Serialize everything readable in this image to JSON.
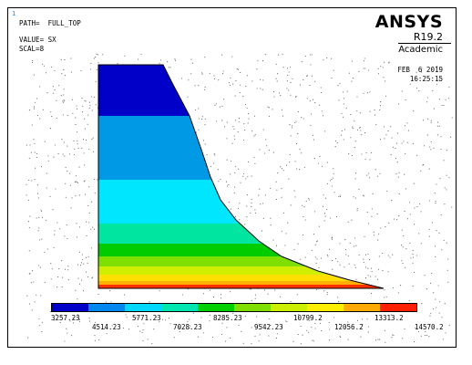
{
  "window": {
    "number": "1"
  },
  "info": {
    "path_line": "PATH=  FULL_TOP",
    "value_line": "VALUE= SX",
    "scale_line": "SCAL=8"
  },
  "logo": {
    "brand": "ANSYS",
    "release": "R19.2",
    "edition": "Academic"
  },
  "stamp": {
    "date": "FEB  6 2019",
    "time": "16:25:15"
  },
  "colors": {
    "bands": [
      "#0000c8",
      "#0088ee",
      "#00d8ff",
      "#00e6b0",
      "#00d000",
      "#7fe000",
      "#ccee00",
      "#ffee00",
      "#ffaa00",
      "#ff2000"
    ],
    "contour_fill": [
      "#0000c8",
      "#0099e6",
      "#00e6ff",
      "#00e6a0",
      "#00cc00",
      "#7fe000",
      "#d0ee00",
      "#ffe000",
      "#ffb000",
      "#ff3000"
    ]
  },
  "legend": {
    "labels": [
      "3257.23",
      "4514.23",
      "5771.23",
      "7028.23",
      "8285.23",
      "9542.23",
      "10799.2",
      "12056.2",
      "13313.2",
      "14570.2"
    ]
  }
}
